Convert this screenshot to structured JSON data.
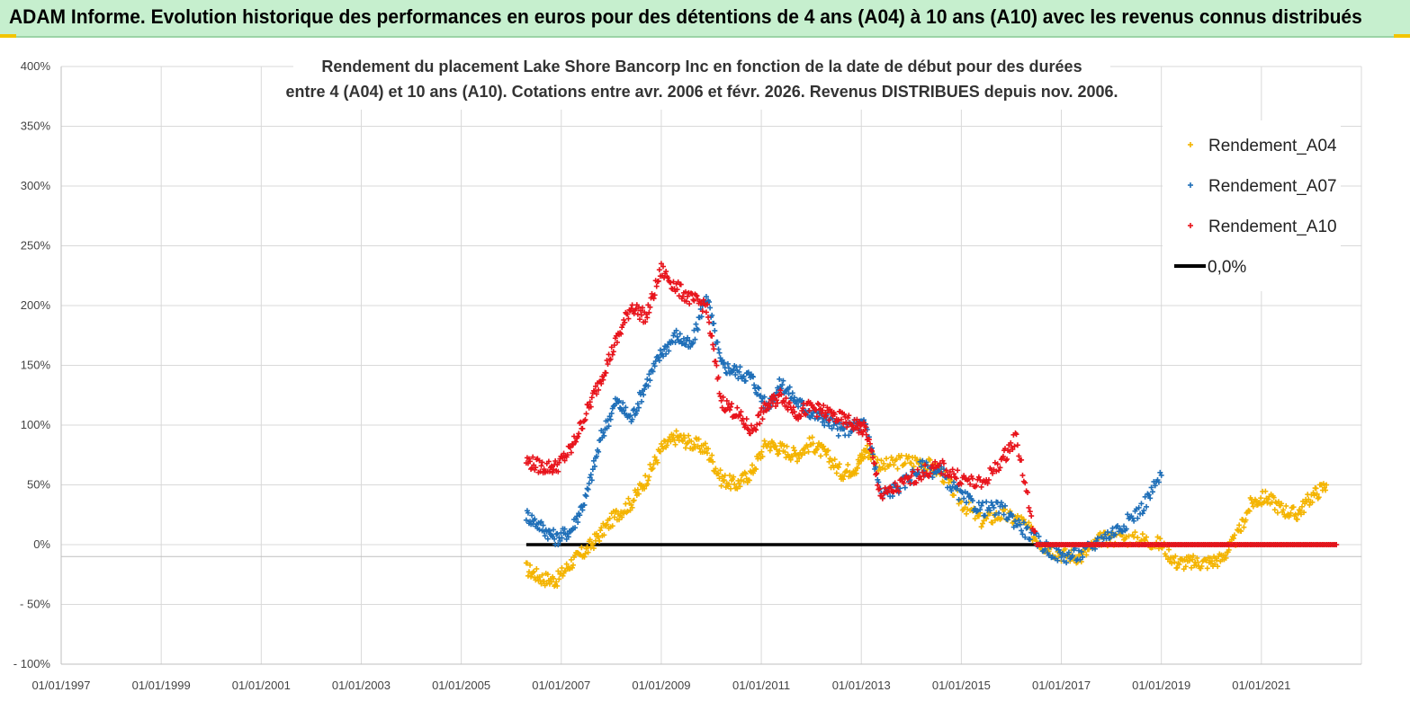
{
  "banner": {
    "title": "ADAM Informe. Evolution historique des performances en euros pour des détentions de 4 ans (A04) à 10 ans (A10) avec les revenus connus distribués"
  },
  "colors": {
    "banner_bg": "#c6efce",
    "a04": "#f4b400",
    "a07": "#1f6fb8",
    "a10": "#e8141c",
    "zero": "#000000",
    "grid": "#d9d9d9"
  },
  "chart_data": {
    "type": "scatter",
    "title_line1": "Rendement du placement Lake Shore Bancorp Inc en fonction de la date de début pour des durées",
    "title_line2": "entre 4 (A04) et 10 ans (A10).  Cotations entre avr. 2006 et févr. 2026. Revenus DISTRIBUES depuis nov. 2006.",
    "xlabel": "",
    "ylabel": "",
    "xlim": [
      1997.0,
      2023.0
    ],
    "ylim": [
      -100,
      400
    ],
    "x_ticks": [
      1997,
      1999,
      2001,
      2003,
      2005,
      2007,
      2009,
      2011,
      2013,
      2015,
      2017,
      2019,
      2021
    ],
    "x_tick_labels": [
      "01/01/1997",
      "01/01/1999",
      "01/01/2001",
      "01/01/2003",
      "01/01/2005",
      "01/01/2007",
      "01/01/2009",
      "01/01/2011",
      "01/01/2013",
      "01/01/2015",
      "01/01/2017",
      "01/01/2019",
      "01/01/2021"
    ],
    "y_ticks": [
      -100,
      -50,
      0,
      50,
      100,
      150,
      200,
      250,
      300,
      350,
      400
    ],
    "y_tick_labels": [
      "- 100%",
      "- 50%",
      "0%",
      "50%",
      "100%",
      "150%",
      "200%",
      "250%",
      "300%",
      "350%",
      "400%"
    ],
    "legend_position": "top-right",
    "series": [
      {
        "name": "Rendement_A04",
        "marker": "+",
        "x": [
          2006.3,
          2006.6,
          2006.9,
          2007.2,
          2007.5,
          2007.8,
          2008.1,
          2008.4,
          2008.7,
          2009.0,
          2009.3,
          2009.6,
          2009.9,
          2010.2,
          2010.5,
          2010.8,
          2011.1,
          2011.4,
          2011.7,
          2012.0,
          2012.3,
          2012.6,
          2012.9,
          2013.1,
          2013.4,
          2013.8,
          2014.2,
          2014.6,
          2015.0,
          2015.4,
          2015.8,
          2016.2,
          2016.6,
          2017.0,
          2017.4,
          2017.8,
          2018.2,
          2018.6,
          2019.0,
          2019.3,
          2019.6,
          2019.9,
          2020.2,
          2020.5,
          2020.8,
          2021.1,
          2021.4,
          2021.7,
          2022.0,
          2022.3
        ],
        "y": [
          -20,
          -28,
          -30,
          -15,
          -5,
          10,
          25,
          35,
          55,
          80,
          90,
          85,
          80,
          55,
          50,
          60,
          85,
          80,
          75,
          85,
          75,
          60,
          65,
          80,
          65,
          70,
          70,
          60,
          35,
          20,
          25,
          20,
          0,
          -8,
          -10,
          5,
          5,
          5,
          0,
          -15,
          -15,
          -15,
          -12,
          5,
          35,
          40,
          30,
          25,
          40,
          50
        ]
      },
      {
        "name": "Rendement_A07",
        "marker": "+",
        "x": [
          2006.3,
          2006.6,
          2006.9,
          2007.2,
          2007.5,
          2007.8,
          2008.1,
          2008.4,
          2008.7,
          2009.0,
          2009.3,
          2009.6,
          2009.9,
          2010.2,
          2010.5,
          2010.8,
          2011.1,
          2011.4,
          2011.7,
          2012.0,
          2012.3,
          2012.6,
          2012.9,
          2013.1,
          2013.4,
          2013.8,
          2014.2,
          2014.6,
          2015.0,
          2015.4,
          2015.8,
          2016.2,
          2016.6,
          2017.0,
          2017.4,
          2017.8,
          2018.2,
          2018.6,
          2019.0
        ],
        "y": [
          25,
          15,
          5,
          12,
          40,
          90,
          120,
          105,
          135,
          160,
          175,
          165,
          210,
          150,
          145,
          140,
          115,
          135,
          120,
          110,
          105,
          95,
          100,
          100,
          40,
          50,
          65,
          60,
          40,
          30,
          30,
          15,
          0,
          -10,
          -8,
          5,
          15,
          30,
          58
        ]
      },
      {
        "name": "Rendement_A10",
        "marker": "+",
        "x": [
          2006.3,
          2006.6,
          2006.9,
          2007.2,
          2007.5,
          2007.8,
          2008.1,
          2008.4,
          2008.7,
          2009.0,
          2009.3,
          2009.6,
          2009.9,
          2010.2,
          2010.5,
          2010.8,
          2011.1,
          2011.4,
          2011.7,
          2012.0,
          2012.3,
          2012.6,
          2012.9,
          2013.1,
          2013.4,
          2013.8,
          2014.2,
          2014.6,
          2015.0,
          2015.4,
          2015.8,
          2016.1,
          2016.5,
          2017.0,
          2017.5,
          2018.0,
          2018.5,
          2019.0,
          2019.5,
          2020.0,
          2020.5,
          2021.0,
          2021.5,
          2022.0,
          2022.5
        ],
        "y": [
          70,
          65,
          65,
          80,
          110,
          140,
          170,
          200,
          190,
          230,
          215,
          205,
          200,
          120,
          110,
          95,
          115,
          125,
          110,
          115,
          110,
          105,
          100,
          95,
          40,
          50,
          60,
          65,
          55,
          50,
          70,
          90,
          0,
          0,
          0,
          0,
          0,
          0,
          0,
          0,
          0,
          0,
          0,
          0,
          0
        ]
      },
      {
        "name": "0,0%",
        "type": "line",
        "x": [
          2006.3,
          2022.5
        ],
        "y": [
          0,
          0
        ]
      }
    ]
  }
}
